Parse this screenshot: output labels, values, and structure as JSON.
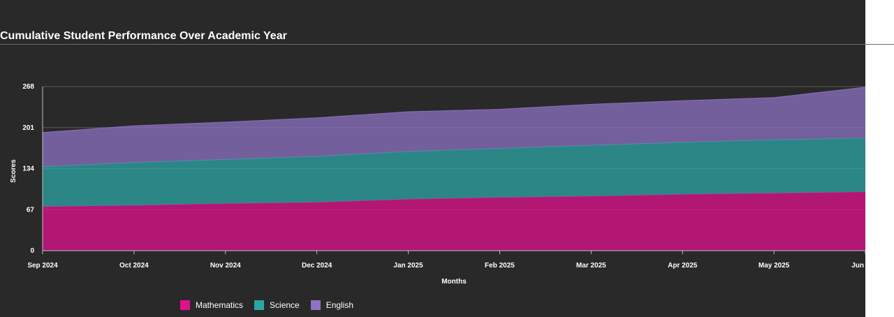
{
  "chart_data": {
    "type": "area",
    "stacked": true,
    "title": "Cumulative Student Performance Over Academic Year",
    "xlabel": "Months",
    "ylabel": "Scores",
    "categories": [
      "Sep 2024",
      "Oct 2024",
      "Nov 2024",
      "Dec 2024",
      "Jan 2025",
      "Feb 2025",
      "Mar 2025",
      "Apr 2025",
      "May 2025",
      "Jun"
    ],
    "yticks": [
      0,
      67,
      134,
      201,
      268
    ],
    "ylim": [
      0,
      268
    ],
    "grid": true,
    "legend_position": "bottom",
    "series": [
      {
        "name": "Mathematics",
        "color": "#e0118d",
        "values": [
          72,
          74,
          77,
          79,
          84,
          87,
          89,
          92,
          94,
          96
        ]
      },
      {
        "name": "Science",
        "color": "#2ca6a4",
        "values": [
          65,
          70,
          72,
          75,
          78,
          80,
          83,
          85,
          87,
          88
        ]
      },
      {
        "name": "English",
        "color": "#8e72c4",
        "values": [
          56,
          60,
          61,
          63,
          65,
          64,
          67,
          68,
          69,
          83
        ]
      }
    ]
  }
}
